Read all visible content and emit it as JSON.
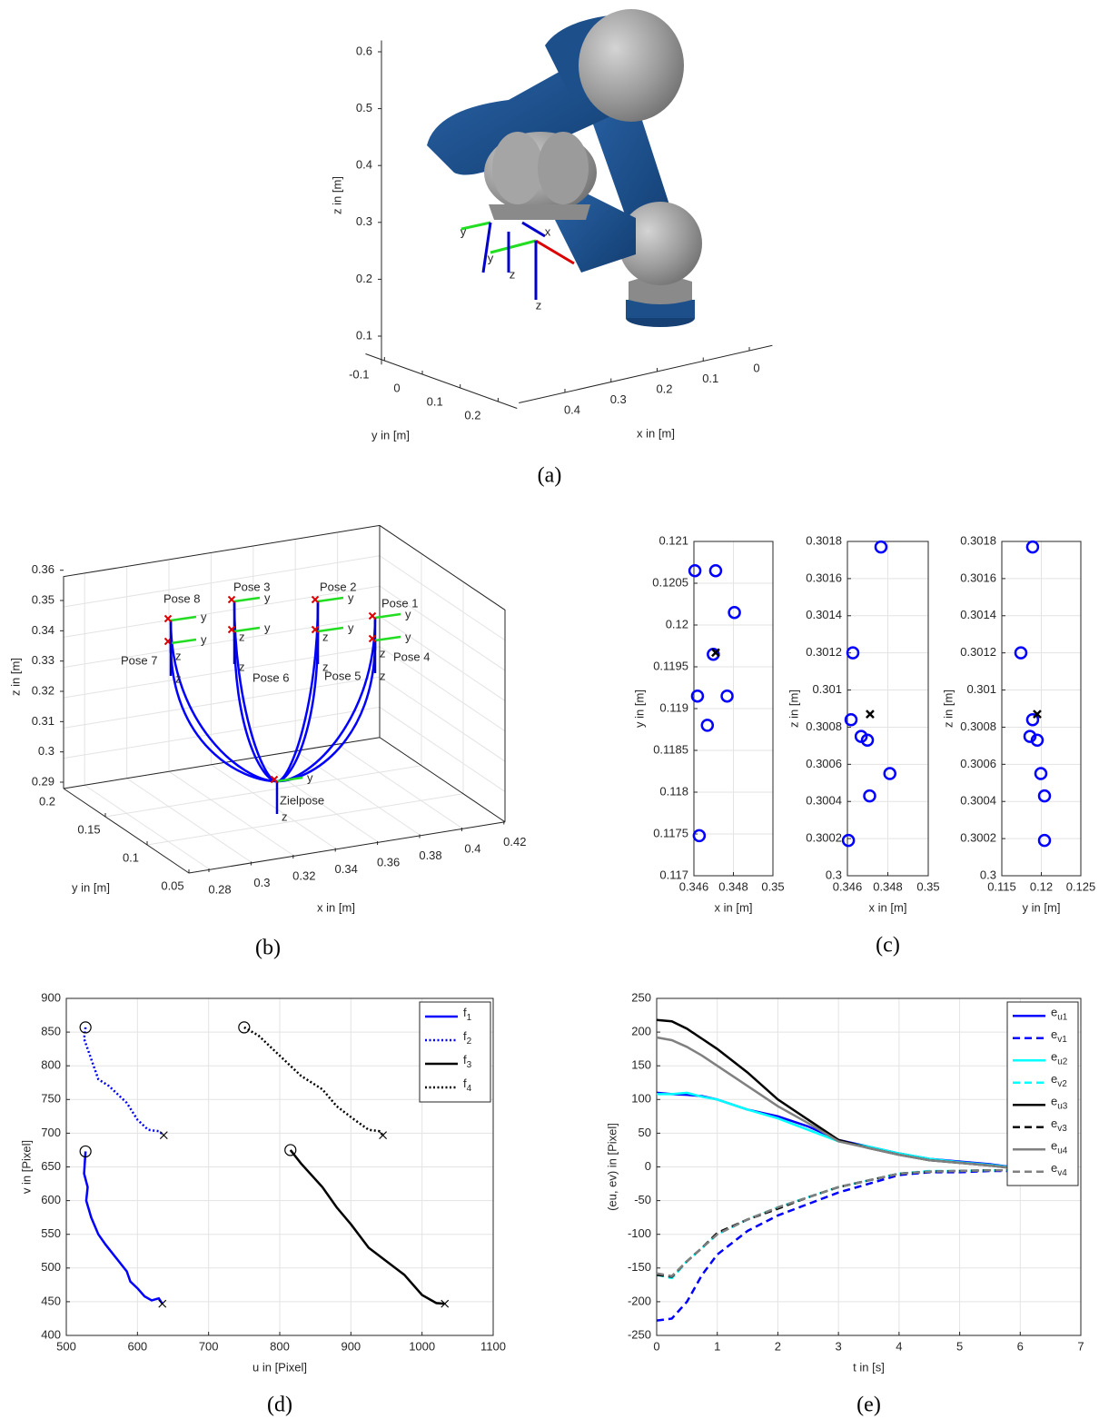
{
  "chart_data": [
    {
      "type": "robot3d",
      "caption": "(a)",
      "xlabel": "x in [m]",
      "ylabel": "y in [m]",
      "zlabel": "z in [m]",
      "xlim": [
        -0.05,
        0.5
      ],
      "xticks": [
        0,
        0.1,
        0.2,
        0.3,
        0.4
      ],
      "ylim": [
        -0.15,
        0.25
      ],
      "yticks": [
        -0.1,
        0,
        0.1,
        0.2
      ],
      "zlim": [
        0.05,
        0.62
      ],
      "zticks": [
        0.1,
        0.2,
        0.3,
        0.4,
        0.5,
        0.6
      ],
      "annotations": [
        "y",
        "x",
        "y",
        "z",
        "z"
      ]
    },
    {
      "type": "trajectory3d",
      "caption": "(b)",
      "xlabel": "x in [m]",
      "ylabel": "y in [m]",
      "zlabel": "z in [m]",
      "xlim": [
        0.27,
        0.42
      ],
      "xticks": [
        0.28,
        0.3,
        0.32,
        0.34,
        0.36,
        0.38,
        0.4,
        0.42
      ],
      "ylim": [
        0.05,
        0.2
      ],
      "yticks": [
        0.05,
        0.1,
        0.15,
        0.2
      ],
      "zlim": [
        0.29,
        0.36
      ],
      "zticks": [
        0.29,
        0.3,
        0.31,
        0.32,
        0.33,
        0.34,
        0.35,
        0.36
      ],
      "grid": true,
      "annotations": [
        "Pose 1",
        "Pose 2",
        "Pose 3",
        "Pose 4",
        "Pose 5",
        "Pose 6",
        "Pose 7",
        "Pose 8",
        "Zielpose"
      ],
      "frame_labels": [
        "y",
        "z"
      ]
    },
    {
      "type": "scatter",
      "xlabel": "x in [m]",
      "ylabel": "y in [m]",
      "grid": true,
      "xlim": [
        0.346,
        0.35
      ],
      "xticks": [
        0.346,
        0.348,
        0.35
      ],
      "ylim": [
        0.117,
        0.121
      ],
      "yticks": [
        0.117,
        0.1175,
        0.118,
        0.1185,
        0.119,
        0.1195,
        0.12,
        0.1205,
        0.121
      ],
      "series": [
        {
          "marker": "o",
          "color": "#0000ff",
          "x": [
            0.34605,
            0.3471,
            0.34805,
            0.34698,
            0.34618,
            0.34768,
            0.34668,
            0.34627
          ],
          "values": [
            0.12065,
            0.12065,
            0.12015,
            0.11965,
            0.11915,
            0.11915,
            0.1188,
            0.11748
          ]
        },
        {
          "marker": "x",
          "color": "#000000",
          "x": [
            0.3471
          ],
          "values": [
            0.11967
          ]
        }
      ]
    },
    {
      "type": "scatter",
      "caption": "(c)",
      "xlabel": "x in [m]",
      "ylabel": "z in [m]",
      "grid": true,
      "xlim": [
        0.346,
        0.35
      ],
      "xticks": [
        0.346,
        0.348,
        0.35
      ],
      "ylim": [
        0.3,
        0.3018
      ],
      "yticks": [
        0.3,
        0.3002,
        0.3004,
        0.3006,
        0.3008,
        0.301,
        0.3012,
        0.3014,
        0.3016,
        0.3018
      ],
      "series": [
        {
          "marker": "o",
          "color": "#0000ff",
          "x": [
            0.34766,
            0.34627,
            0.34618,
            0.34668,
            0.34699,
            0.3481,
            0.3471,
            0.34605
          ],
          "values": [
            0.30177,
            0.3012,
            0.30084,
            0.30075,
            0.30073,
            0.30055,
            0.30043,
            0.30019
          ]
        },
        {
          "marker": "x",
          "color": "#000000",
          "x": [
            0.34712
          ],
          "values": [
            0.30087
          ]
        }
      ]
    },
    {
      "type": "scatter",
      "xlabel": "y in [m]",
      "ylabel": "z in [m]",
      "grid": true,
      "xlim": [
        0.115,
        0.125
      ],
      "xticks": [
        0.115,
        0.12,
        0.125
      ],
      "ylim": [
        0.3,
        0.3018
      ],
      "yticks": [
        0.3,
        0.3002,
        0.3004,
        0.3006,
        0.3008,
        0.301,
        0.3012,
        0.3014,
        0.3016,
        0.3018
      ],
      "series": [
        {
          "marker": "o",
          "color": "#0000ff",
          "x": [
            0.1189,
            0.11741,
            0.11856,
            0.1189,
            0.11948,
            0.11994,
            0.1204,
            0.1204
          ],
          "values": [
            0.30177,
            0.3012,
            0.30075,
            0.30084,
            0.30073,
            0.30055,
            0.30043,
            0.30019
          ]
        },
        {
          "marker": "x",
          "color": "#000000",
          "x": [
            0.11948
          ],
          "values": [
            0.30087
          ]
        }
      ]
    },
    {
      "type": "line",
      "caption": "(d)",
      "xlabel": "u in [Pixel]",
      "ylabel": "v in [Pixel]",
      "grid": true,
      "legend": "upper right",
      "xlim": [
        500,
        1100
      ],
      "xticks": [
        500,
        600,
        700,
        800,
        900,
        1000,
        1100
      ],
      "ylim": [
        400,
        900
      ],
      "yticks": [
        400,
        450,
        500,
        550,
        600,
        650,
        700,
        750,
        800,
        850,
        900
      ],
      "series": [
        {
          "name": "f1",
          "color": "#0000ff",
          "dash": "solid",
          "x": [
            527,
            525,
            530,
            528,
            535,
            545,
            555,
            570,
            585,
            590,
            600,
            610,
            620,
            630,
            635
          ],
          "values": [
            673,
            640,
            620,
            600,
            575,
            550,
            535,
            515,
            495,
            480,
            470,
            458,
            452,
            455,
            447
          ]
        },
        {
          "name": "f2",
          "color": "#0000ff",
          "dash": "dotted",
          "x": [
            527,
            525,
            535,
            545,
            560,
            585,
            600,
            615,
            630,
            637
          ],
          "values": [
            857,
            840,
            810,
            780,
            770,
            745,
            720,
            705,
            703,
            697
          ]
        },
        {
          "name": "f3",
          "color": "#000000",
          "dash": "solid",
          "x": [
            815,
            830,
            860,
            880,
            900,
            925,
            950,
            975,
            1000,
            1020,
            1032
          ],
          "values": [
            675,
            655,
            620,
            590,
            565,
            530,
            510,
            490,
            460,
            448,
            447
          ]
        },
        {
          "name": "f4",
          "color": "#000000",
          "dash": "dotted",
          "x": [
            750,
            770,
            800,
            830,
            860,
            880,
            905,
            925,
            940,
            945
          ],
          "values": [
            857,
            845,
            815,
            785,
            765,
            740,
            720,
            705,
            703,
            697
          ]
        }
      ]
    },
    {
      "type": "line",
      "caption": "(e)",
      "xlabel": "t in [s]",
      "ylabel": "(eu, ev) in [Pixel]",
      "grid": true,
      "legend": "upper right",
      "xlim": [
        0,
        7
      ],
      "xticks": [
        0,
        1,
        2,
        3,
        4,
        5,
        6,
        7
      ],
      "ylim": [
        -250,
        250
      ],
      "yticks": [
        -250,
        -200,
        -150,
        -100,
        -50,
        0,
        50,
        100,
        150,
        200,
        250
      ],
      "x": [
        0,
        0.25,
        0.5,
        0.75,
        1,
        1.5,
        2,
        2.5,
        3,
        3.5,
        4,
        4.5,
        5,
        5.5,
        6
      ],
      "series": [
        {
          "name": "eu1",
          "color": "#0000ff",
          "dash": "solid",
          "values": [
            110,
            108,
            107,
            105,
            100,
            85,
            75,
            60,
            40,
            30,
            20,
            12,
            8,
            4,
            -2
          ]
        },
        {
          "name": "ev1",
          "color": "#0000ff",
          "dash": "dashed",
          "values": [
            -228,
            -225,
            -200,
            -160,
            -130,
            -95,
            -72,
            -55,
            -38,
            -25,
            -12,
            -8,
            -8,
            -6,
            -6
          ]
        },
        {
          "name": "eu2",
          "color": "#00ffff",
          "dash": "solid",
          "values": [
            108,
            108,
            110,
            104,
            100,
            85,
            72,
            55,
            38,
            30,
            20,
            12,
            7,
            3,
            -2
          ]
        },
        {
          "name": "ev2",
          "color": "#00ffff",
          "dash": "dashed",
          "values": [
            -160,
            -165,
            -140,
            -120,
            -100,
            -78,
            -60,
            -45,
            -30,
            -20,
            -10,
            -6,
            -6,
            -5,
            -5
          ]
        },
        {
          "name": "eu3",
          "color": "#000000",
          "dash": "solid",
          "values": [
            218,
            216,
            205,
            190,
            175,
            140,
            100,
            70,
            40,
            28,
            18,
            10,
            6,
            2,
            -3
          ]
        },
        {
          "name": "ev3",
          "color": "#000000",
          "dash": "dashed",
          "values": [
            -160,
            -163,
            -140,
            -120,
            -98,
            -78,
            -62,
            -45,
            -30,
            -20,
            -10,
            -7,
            -6,
            -5,
            -5
          ]
        },
        {
          "name": "eu4",
          "color": "#808080",
          "dash": "solid",
          "values": [
            192,
            188,
            178,
            165,
            150,
            120,
            90,
            65,
            38,
            28,
            18,
            10,
            6,
            2,
            -3
          ]
        },
        {
          "name": "ev4",
          "color": "#808080",
          "dash": "dashed",
          "values": [
            -158,
            -162,
            -140,
            -120,
            -100,
            -78,
            -60,
            -45,
            -30,
            -20,
            -10,
            -7,
            -6,
            -5,
            -5
          ]
        }
      ]
    }
  ]
}
